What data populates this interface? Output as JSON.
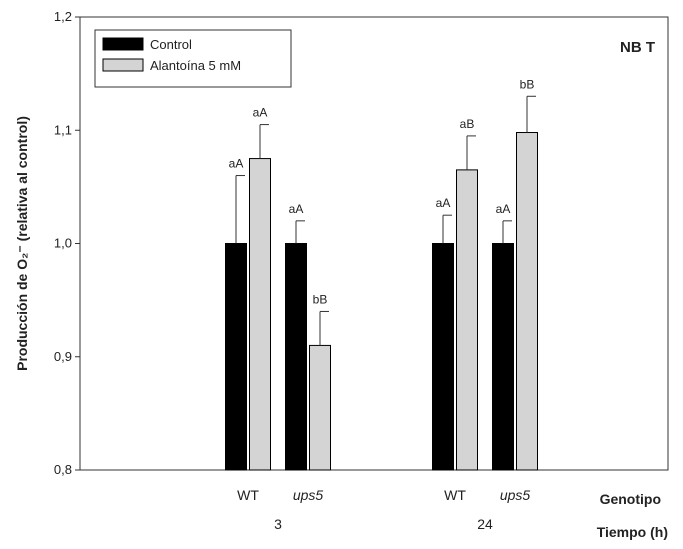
{
  "chart_data": {
    "type": "bar",
    "panel_label": "NB T",
    "ylabel": "Producción de O₂⁻ (relativa al control)",
    "ylim": [
      0.8,
      1.2
    ],
    "yticks": [
      "0,8",
      "0,9",
      "1,0",
      "1,1",
      "1,2"
    ],
    "ytick_values": [
      0.8,
      0.9,
      1.0,
      1.1,
      1.2
    ],
    "legend_position": "top-left",
    "grid": false,
    "axis_row_labels": [
      "Genotipo",
      "Tiempo (h)"
    ],
    "time_groups": [
      {
        "label": "3",
        "genotypes": [
          {
            "label": "WT",
            "italic": false
          },
          {
            "label": "ups5",
            "italic": true
          }
        ]
      },
      {
        "label": "24",
        "genotypes": [
          {
            "label": "WT",
            "italic": false
          },
          {
            "label": "ups5",
            "italic": true
          }
        ]
      }
    ],
    "series": [
      {
        "name": "Control",
        "color": "#000000",
        "values": [
          1.0,
          1.0,
          1.0,
          1.0
        ],
        "errors": [
          0.06,
          0.02,
          0.025,
          0.02
        ],
        "labels": [
          "aA",
          "aA",
          "aA",
          "aA"
        ]
      },
      {
        "name": "Alantoína 5 mM",
        "color": "#d4d4d4",
        "values": [
          1.075,
          0.91,
          1.065,
          1.098
        ],
        "errors": [
          0.03,
          0.03,
          0.03,
          0.032
        ],
        "labels": [
          "aA",
          "bB",
          "aB",
          "bB"
        ]
      }
    ]
  }
}
